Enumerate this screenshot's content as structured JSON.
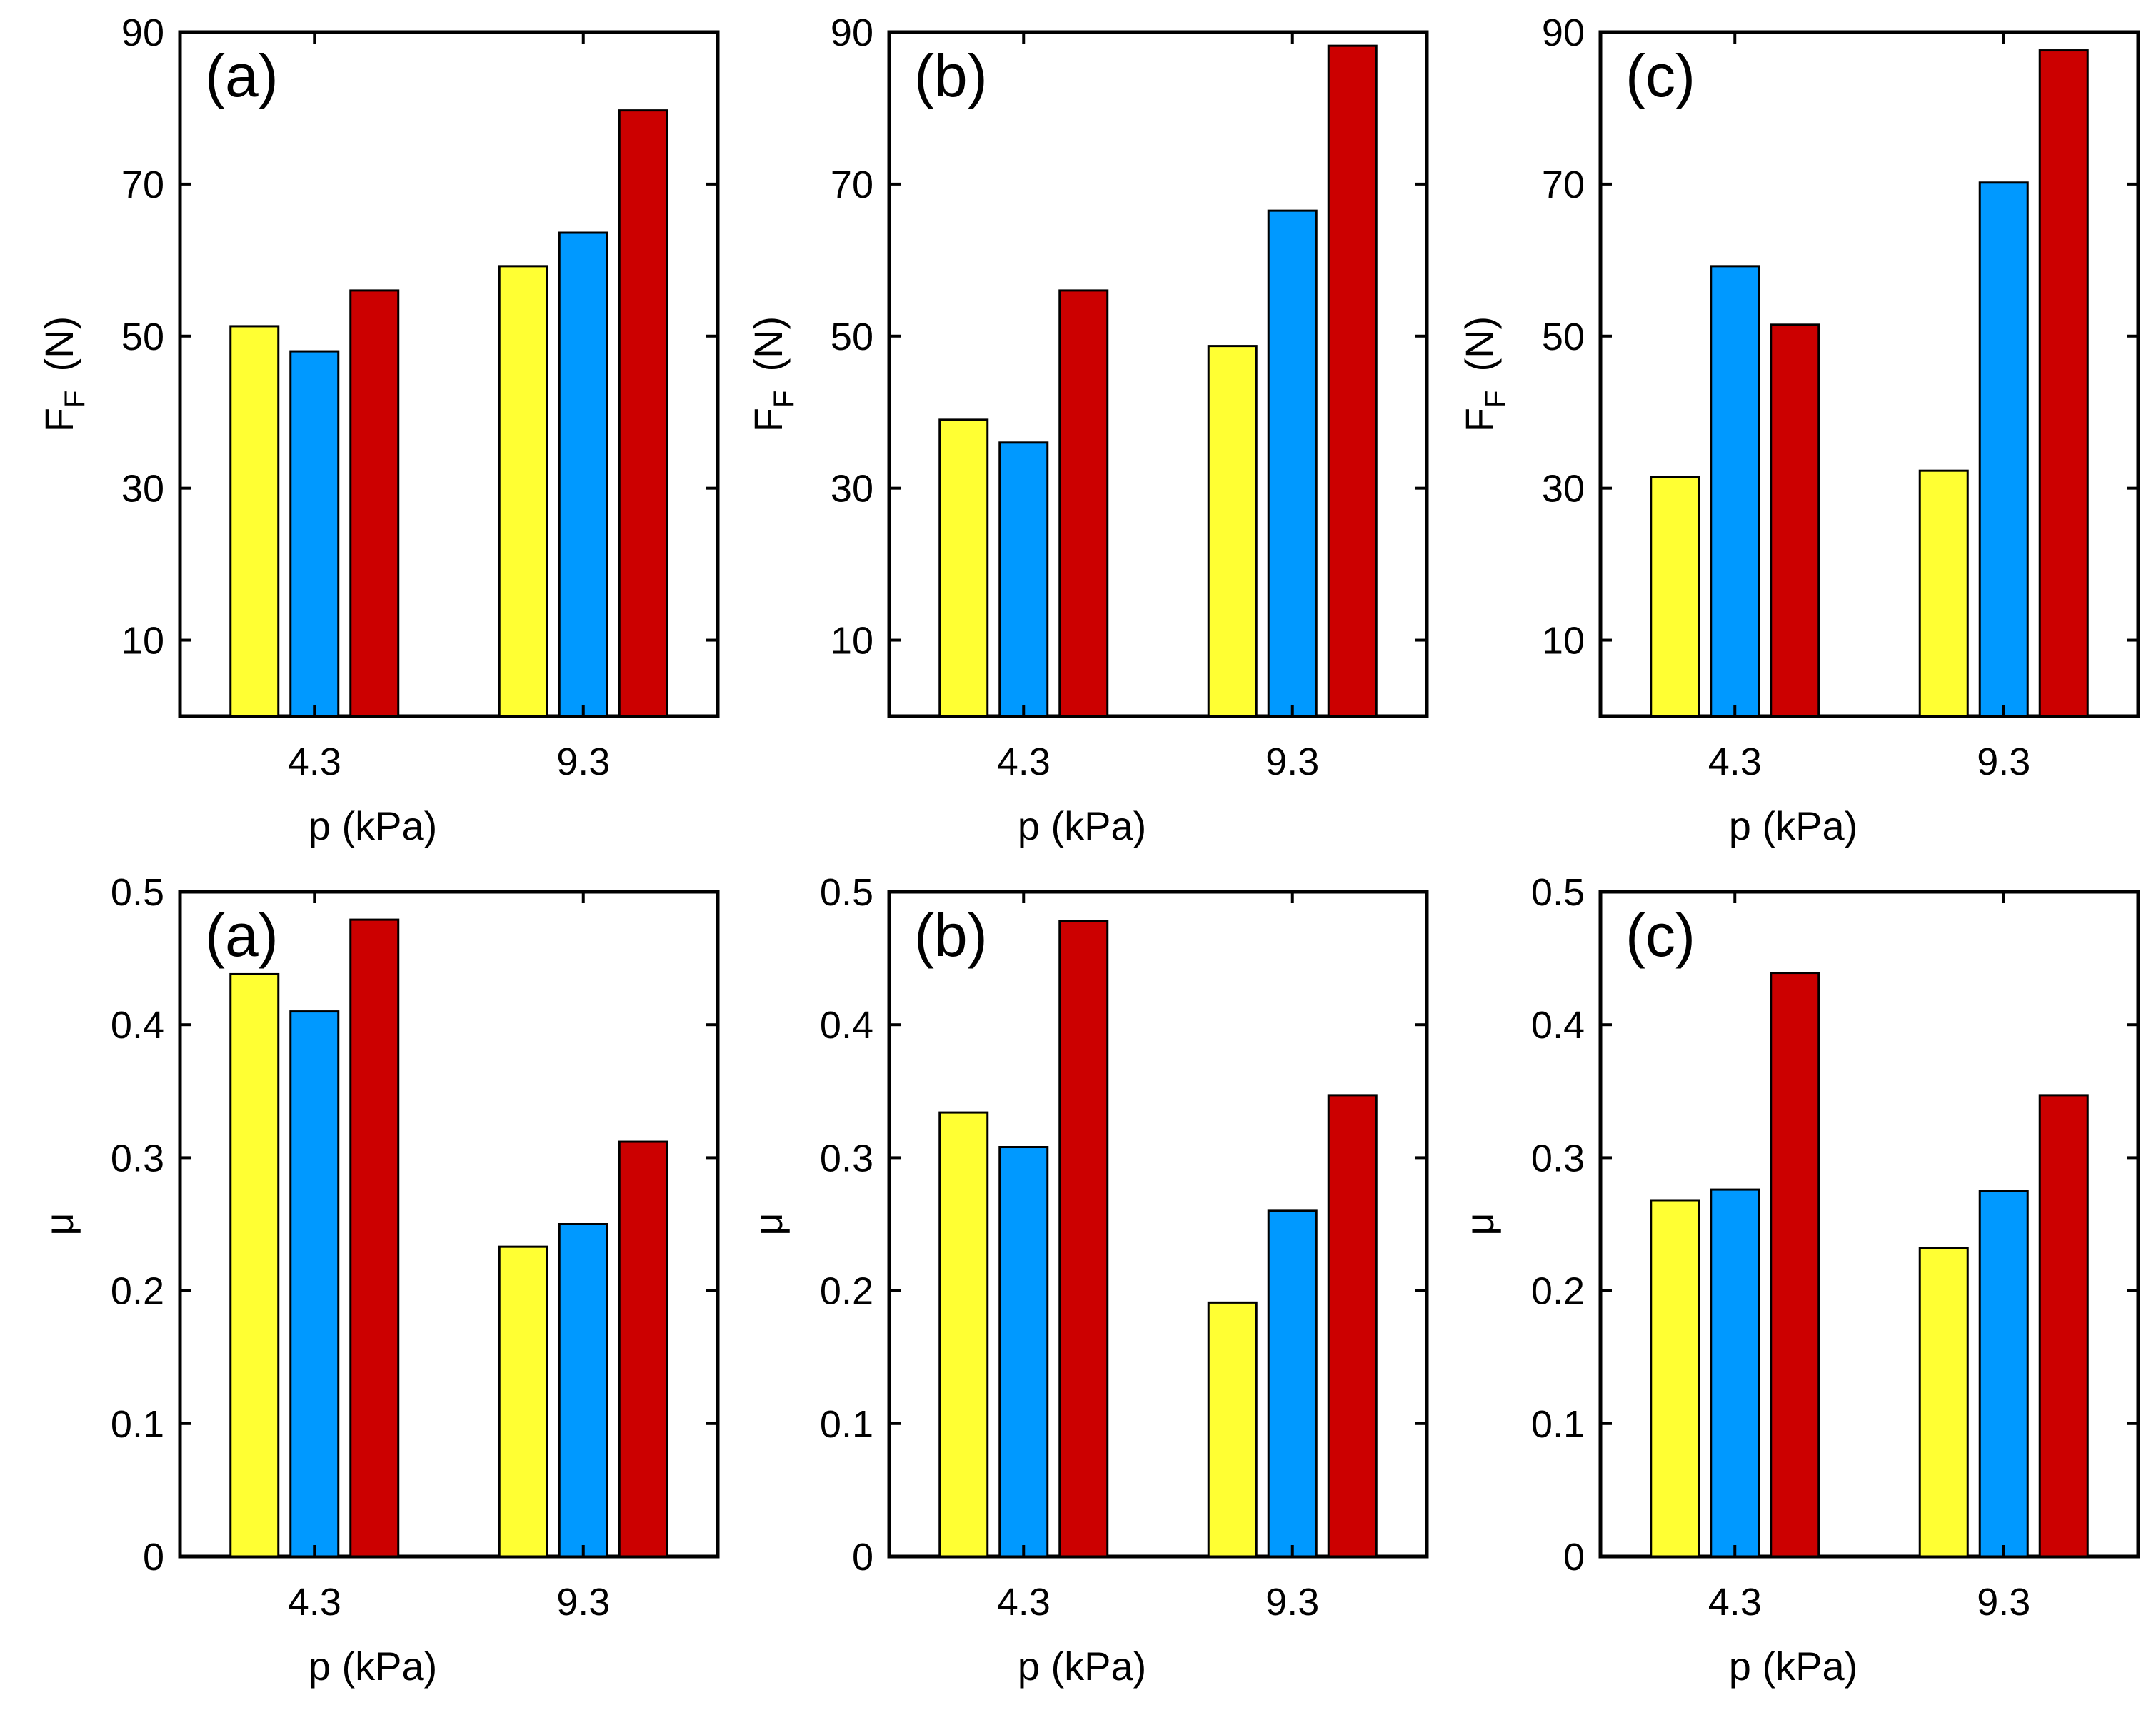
{
  "colors": {
    "series": [
      "#ffff33",
      "#0099ff",
      "#cc0000"
    ],
    "axis": "#000000",
    "background": "#ffffff"
  },
  "chart_data": [
    {
      "type": "bar",
      "panel_tag": "(a)",
      "row": 0,
      "col": 0,
      "categories": [
        "4.3",
        "9.3"
      ],
      "xlabel": "p   (kPa)",
      "ylabel": {
        "main": "F",
        "sub": "F",
        "unit": "(N)"
      },
      "ylim": [
        0,
        90
      ],
      "yticks": [
        10,
        30,
        50,
        70
      ],
      "ytick_labels": [
        "10",
        "30",
        "50",
        "70"
      ],
      "top_label": "90",
      "series": [
        {
          "values": [
            51.3,
            59.2
          ]
        },
        {
          "values": [
            48.0,
            63.6
          ]
        },
        {
          "values": [
            56.0,
            79.7
          ]
        }
      ]
    },
    {
      "type": "bar",
      "panel_tag": "(b)",
      "row": 0,
      "col": 1,
      "categories": [
        "4.3",
        "9.3"
      ],
      "xlabel": "p   (kPa)",
      "ylabel": {
        "main": "F",
        "sub": "F",
        "unit": "(N)"
      },
      "ylim": [
        0,
        90
      ],
      "yticks": [
        10,
        30,
        50,
        70
      ],
      "ytick_labels": [
        "10",
        "30",
        "50",
        "70"
      ],
      "top_label": "90",
      "series": [
        {
          "values": [
            39.0,
            48.7
          ]
        },
        {
          "values": [
            36.0,
            66.5
          ]
        },
        {
          "values": [
            56.0,
            88.2
          ]
        }
      ]
    },
    {
      "type": "bar",
      "panel_tag": "(c)",
      "row": 0,
      "col": 2,
      "categories": [
        "4.3",
        "9.3"
      ],
      "xlabel": "p   (kPa)",
      "ylabel": {
        "main": "F",
        "sub": "F",
        "unit": "(N)"
      },
      "ylim": [
        0,
        90
      ],
      "yticks": [
        10,
        30,
        50,
        70
      ],
      "ytick_labels": [
        "10",
        "30",
        "50",
        "70"
      ],
      "top_label": "90",
      "series": [
        {
          "values": [
            31.5,
            32.3
          ]
        },
        {
          "values": [
            59.2,
            70.2
          ]
        },
        {
          "values": [
            51.5,
            87.6
          ]
        }
      ]
    },
    {
      "type": "bar",
      "panel_tag": "(a)",
      "row": 1,
      "col": 0,
      "categories": [
        "4.3",
        "9.3"
      ],
      "xlabel": "p   (kPa)",
      "ylabel": {
        "main": "μ"
      },
      "ylim": [
        0,
        0.5
      ],
      "yticks": [
        0,
        0.1,
        0.2,
        0.3,
        0.4,
        0.5
      ],
      "ytick_labels": [
        "0",
        "0.1",
        "0.2",
        "0.3",
        "0.4",
        "0.5"
      ],
      "series": [
        {
          "values": [
            0.438,
            0.233
          ]
        },
        {
          "values": [
            0.41,
            0.25
          ]
        },
        {
          "values": [
            0.479,
            0.312
          ]
        }
      ]
    },
    {
      "type": "bar",
      "panel_tag": "(b)",
      "row": 1,
      "col": 1,
      "categories": [
        "4.3",
        "9.3"
      ],
      "xlabel": "p   (kPa)",
      "ylabel": {
        "main": "μ"
      },
      "ylim": [
        0,
        0.5
      ],
      "yticks": [
        0,
        0.1,
        0.2,
        0.3,
        0.4,
        0.5
      ],
      "ytick_labels": [
        "0",
        "0.1",
        "0.2",
        "0.3",
        "0.4",
        "0.5"
      ],
      "series": [
        {
          "values": [
            0.334,
            0.191
          ]
        },
        {
          "values": [
            0.308,
            0.26
          ]
        },
        {
          "values": [
            0.478,
            0.347
          ]
        }
      ]
    },
    {
      "type": "bar",
      "panel_tag": "(c)",
      "row": 1,
      "col": 2,
      "categories": [
        "4.3",
        "9.3"
      ],
      "xlabel": "p   (kPa)",
      "ylabel": {
        "main": "μ"
      },
      "ylim": [
        0,
        0.5
      ],
      "yticks": [
        0,
        0.1,
        0.2,
        0.3,
        0.4,
        0.5
      ],
      "ytick_labels": [
        "0",
        "0.1",
        "0.2",
        "0.3",
        "0.4",
        "0.5"
      ],
      "series": [
        {
          "values": [
            0.268,
            0.232
          ]
        },
        {
          "values": [
            0.276,
            0.275
          ]
        },
        {
          "values": [
            0.439,
            0.347
          ]
        }
      ]
    }
  ]
}
